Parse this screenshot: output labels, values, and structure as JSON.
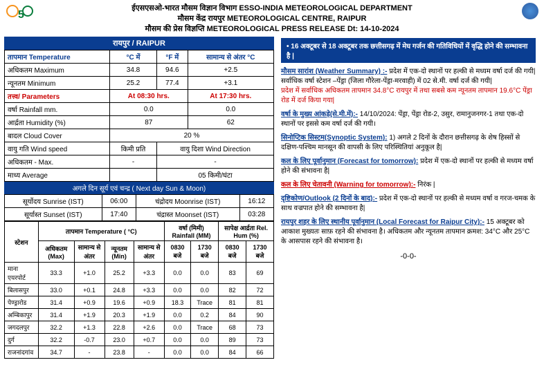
{
  "header": {
    "line1": "ईएसएसओ-भारत मौसम विज्ञान विभाग ESSO-INDIA METEOROLOGICAL DEPARTMENT",
    "line2": "मौसम केंद्र रायपुर METEOROLOGICAL CENTRE, RAIPUR",
    "line3": "मौसम की प्रेस विज्ञप्ति METEOROLOGICAL PRESS RELEASE Dt: 14-10-2024"
  },
  "title_bar": "रायपुर / RAIPUR",
  "temp_table": {
    "headers": [
      "तापमान  Temperature",
      "°C में",
      "°F में",
      "सामान्य से अंतर  °C"
    ],
    "rows": [
      {
        "label": "अधिकतम  Maximum",
        "c": "34.8",
        "f": "94.6",
        "diff": "+2.5"
      },
      {
        "label": "न्यूनतम  Minimum",
        "c": "25.2",
        "f": "77.4",
        "diff": "+3.1"
      }
    ]
  },
  "param_table": {
    "header_label": "तत्त्व/ Parameters",
    "time1": "At 08:30 hrs.",
    "time2": "At 17:30 hrs.",
    "rows": [
      {
        "label": "वर्षा  Rainfall mm.",
        "v1": "0.0",
        "v2": "0.0"
      },
      {
        "label": "आर्द्रता Humidity (%)",
        "v1": "87",
        "v2": "62"
      }
    ],
    "cloud_label": "बादल  Cloud Cover",
    "cloud_val": "20 %",
    "wind_speed_label": "वायु गति Wind speed",
    "wind_speed_unit": "किमी प्रति",
    "wind_dir_label": "वायु दिशा Wind Direction",
    "max_label": "अधिकतम  -  Max.",
    "max_val": "-",
    "dir_val": "-",
    "avg_label": "माध्य  Average",
    "avg_val": "05 किमी/घंटा"
  },
  "sunmoon": {
    "title": "अगले दिन सूर्य एवं चन्द्र ( Next day Sun & Moon)",
    "rows": [
      {
        "l1": "सूर्योदय Sunrise (IST)",
        "v1": "06:00",
        "l2": "चंद्रोदय Moonrise (IST)",
        "v2": "16:12"
      },
      {
        "l1": "सूर्यास्त Sunset (IST)",
        "v1": "17:40",
        "l2": "चंद्रास्त Moonset (IST)",
        "v2": "03:28"
      }
    ]
  },
  "station_table": {
    "h1": "स्टेशन",
    "h2": "तापमान Temperature ( °C)",
    "h3": "वर्षा (मिमी) Rainfall (MM)",
    "h4": "सापेक्ष आर्द्रता Rel. Hum (%)",
    "sub": [
      "अधिकतम (Max)",
      "सामान्य से अंतर",
      "न्यूनतम (Min)",
      "सामान्य से अंतर",
      "0830 बजे",
      "1730 बजे",
      "0830 बजे",
      "1730 बजे"
    ],
    "rows": [
      {
        "name": "माना एयरपोर्ट",
        "v": [
          "33.3",
          "+1.0",
          "25.2",
          "+3.3",
          "0.0",
          "0.0",
          "83",
          "69"
        ]
      },
      {
        "name": "बिलासपुर",
        "v": [
          "33.0",
          "+0.1",
          "24.8",
          "+3.3",
          "0.0",
          "0.0",
          "82",
          "72"
        ]
      },
      {
        "name": "पेण्ड्रारोड",
        "v": [
          "31.4",
          "+0.9",
          "19.6",
          "+0.9",
          "18.3",
          "Trace",
          "81",
          "81"
        ]
      },
      {
        "name": "अम्बिकापुर",
        "v": [
          "31.4",
          "+1.9",
          "20.3",
          "+1.9",
          "0.0",
          "0.2",
          "84",
          "90"
        ]
      },
      {
        "name": "जगदलपुर",
        "v": [
          "32.2",
          "+1.3",
          "22.8",
          "+2.6",
          "0.0",
          "Trace",
          "68",
          "73"
        ]
      },
      {
        "name": "दुर्ग",
        "v": [
          "32.2",
          "-0.7",
          "23.0",
          "+0.7",
          "0.0",
          "0.0",
          "89",
          "73"
        ]
      },
      {
        "name": "राजनांदगांव",
        "v": [
          "34.7",
          "-",
          "23.8",
          "-",
          "0.0",
          "0.0",
          "84",
          "66"
        ]
      }
    ]
  },
  "banner": "• 16 अक्टूबर से 18 अक्टूबर तक छत्तीसगढ़ में मेघ गर्जन की गतिविधियों में वृद्धि होने की सम्भावना है |",
  "sections": {
    "s1_title": "मौसम सारांश (Weather Summary) :-",
    "s1_body": " प्रदेश में एक-दो स्थानों पर हल्की से मध्यम वर्षा दर्ज की गयी| सर्वाधिक वर्षा स्टेशन –पेंड्रा (जिला गौरेला-पेंड्रा-मरवाही) में 02 से.मी. वर्षा दर्ज की गयी|",
    "s1_red": "प्रदेश में सर्वाधिक अधिकतम तापमान 34.8°C रायपुर में तथा सबसे कम न्यूनतम तापमान 19.6°C पेंड्रा रोड में दर्ज किया गया|",
    "s2_title": "वर्षा के मुख्य आंकड़े(से.मी.में):-",
    "s2_body": " 14/10/2024: पेंड्रा, पेंड्रा रोड-2, उसुर, रामानुजनगर-1 तथा एक-दो स्थानों पर इससे कम वर्षा दर्ज की गयी।",
    "s3_title": "सिनोप्टिक सिस्टम(Synoptic System):",
    "s3_body": " 1) अगले 2 दिनों के दौरान छत्तीसगढ़ के शेष हिस्सों से दक्षिण-पश्चिम मानसून की वापसी के लिए परिस्थितियां अनुकूल है|",
    "s4_title": "कल के लिए पूर्वानुमान (Forecast for tomorrow):",
    "s4_body": " प्रदेश में एक-दो स्थानों पर हल्की से मध्यम वर्षा होने की संभावना है|",
    "s5_title": "कल के लिए चेतावनी (Warning for tomorrow):-",
    "s5_body": " निरंक |",
    "s6_title": "दृष्टिकोण/Outlook (2 दिनों के बाद):-",
    "s6_body": " प्रदेश में एक-दो स्थानों पर हल्की से मध्यम वर्षा व गरज-चमक के साथ वज्रपात होने की सम्भावना है|",
    "s7_title": "रायपुर शहर के लिए स्थानीय पूर्वानुमान (Local Forecast for Raipur City):-",
    "s7_body": " 15 अक्टूबर को आकाश मुख्यतः साफ़ रहने की संभावना है। अधिकतम और न्यूनतम तापमान क्रमश: 34°C और 25°C के आसपास रहने की संभावना है।"
  },
  "footer": "-0-0-"
}
